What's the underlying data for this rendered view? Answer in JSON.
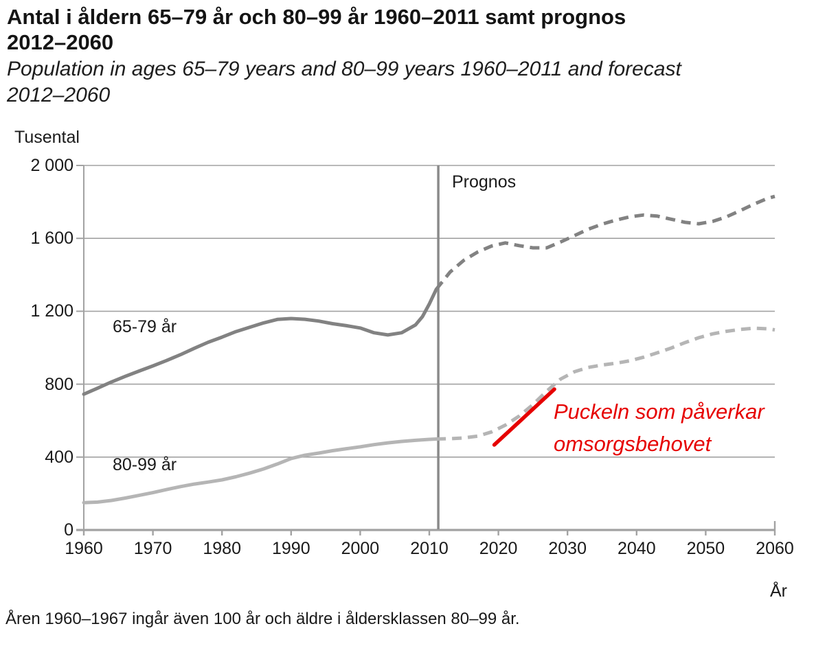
{
  "header": {
    "title_line1": "Antal i åldern 65–79 år och 80–99 år 1960–2011 samt prognos",
    "title_line2": "2012–2060",
    "subtitle_line1": "Population in ages 65–79 years and 80–99 years 1960–2011 and forecast",
    "subtitle_line2": "2012–2060"
  },
  "footnote": "Åren 1960–1967 ingår även 100 år och äldre i åldersklassen 80–99 år.",
  "chart_data": {
    "type": "line",
    "title": "Antal i åldern 65–79 år och 80–99 år 1960–2011 samt prognos 2012–2060",
    "unit_label": "Tusental",
    "x_axis_label": "År",
    "forecast_label": "Prognos",
    "forecast_divider_year": 2011.3,
    "xlim": [
      1960,
      2060
    ],
    "ylim": [
      0,
      2000
    ],
    "grid": true,
    "x_ticks": [
      1960,
      1970,
      1980,
      1990,
      2000,
      2010,
      2020,
      2030,
      2040,
      2050,
      2060
    ],
    "y_ticks": [
      2000,
      1600,
      1200,
      800,
      400,
      0
    ],
    "y_tick_labels": [
      "2 000",
      "1 600",
      "1 200",
      "800",
      "400",
      "0"
    ],
    "colors": {
      "series_65_79": "#828282",
      "series_80_99": "#b5b5b5",
      "gridline": "#a2a2a2",
      "axis": "#a2a2a2",
      "forecast_divider": "#8a8a8a",
      "annotation": "#e60000",
      "text": "#1a1a1a"
    },
    "series": [
      {
        "id": "65-79-historical",
        "label": "65-79 år",
        "style": "solid",
        "color_key": "series_65_79",
        "x": [
          1960,
          1962,
          1964,
          1966,
          1968,
          1970,
          1972,
          1974,
          1976,
          1978,
          1980,
          1982,
          1984,
          1986,
          1988,
          1990,
          1992,
          1994,
          1996,
          1998,
          2000,
          2002,
          2004,
          2006,
          2008,
          2009,
          2010,
          2011
        ],
        "values": [
          745,
          778,
          812,
          843,
          872,
          900,
          930,
          962,
          997,
          1030,
          1058,
          1088,
          1112,
          1136,
          1155,
          1160,
          1156,
          1146,
          1132,
          1121,
          1108,
          1082,
          1070,
          1082,
          1125,
          1170,
          1240,
          1320
        ]
      },
      {
        "id": "65-79-forecast",
        "style": "dashed",
        "color_key": "series_65_79",
        "x": [
          2011,
          2013,
          2015,
          2017,
          2019,
          2021,
          2023,
          2025,
          2027,
          2029,
          2031,
          2033,
          2035,
          2037,
          2039,
          2041,
          2043,
          2045,
          2047,
          2049,
          2051,
          2053,
          2055,
          2057,
          2059,
          2060
        ],
        "values": [
          1320,
          1415,
          1480,
          1525,
          1558,
          1575,
          1560,
          1548,
          1548,
          1580,
          1615,
          1650,
          1678,
          1700,
          1718,
          1728,
          1722,
          1705,
          1688,
          1680,
          1693,
          1718,
          1752,
          1788,
          1820,
          1830
        ]
      },
      {
        "id": "80-99-historical",
        "label": "80-99 år",
        "style": "solid",
        "color_key": "series_80_99",
        "x": [
          1960,
          1962,
          1964,
          1966,
          1968,
          1970,
          1972,
          1974,
          1976,
          1978,
          1980,
          1982,
          1984,
          1986,
          1988,
          1990,
          1992,
          1994,
          1996,
          1998,
          2000,
          2002,
          2004,
          2006,
          2008,
          2010,
          2011
        ],
        "values": [
          150,
          153,
          162,
          175,
          190,
          205,
          222,
          238,
          252,
          263,
          275,
          292,
          312,
          335,
          362,
          392,
          410,
          422,
          435,
          446,
          456,
          468,
          478,
          486,
          492,
          497,
          499
        ]
      },
      {
        "id": "80-99-forecast",
        "style": "dashed",
        "color_key": "series_80_99",
        "x": [
          2011,
          2013,
          2015,
          2017,
          2019,
          2021,
          2023,
          2025,
          2027,
          2029,
          2031,
          2033,
          2035,
          2037,
          2039,
          2041,
          2043,
          2045,
          2047,
          2049,
          2051,
          2053,
          2055,
          2057,
          2059,
          2060
        ],
        "values": [
          499,
          501,
          505,
          515,
          538,
          575,
          625,
          688,
          762,
          828,
          868,
          892,
          905,
          915,
          928,
          948,
          972,
          998,
          1028,
          1055,
          1076,
          1090,
          1100,
          1107,
          1104,
          1098
        ]
      }
    ],
    "annotation": {
      "line1": "Puckeln som påverkar",
      "line2": "omsorgsbehovet",
      "pointer_line": {
        "x1_year": 2019.4,
        "y1_value": 467,
        "x2_year": 2028.1,
        "y2_value": 772
      }
    }
  }
}
